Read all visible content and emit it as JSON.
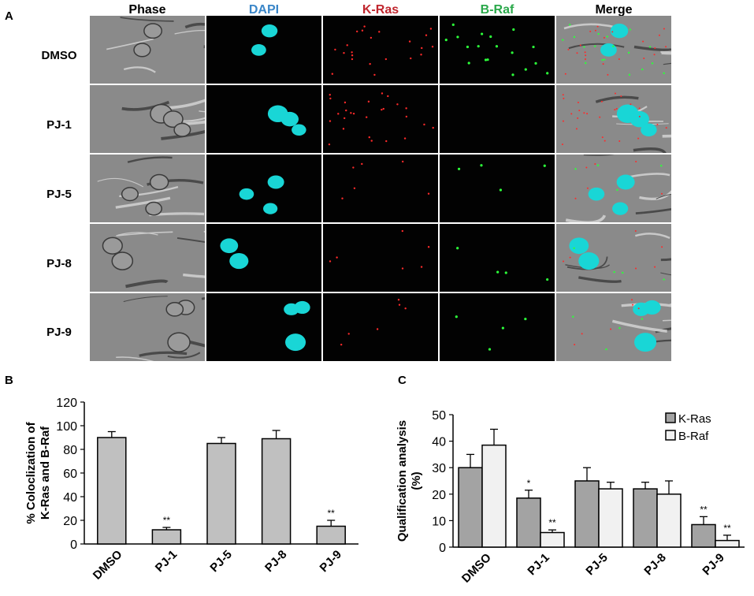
{
  "panels": {
    "A": {
      "letter": "A",
      "columns": [
        {
          "label": "Phase",
          "color": "#000000"
        },
        {
          "label": "DAPI",
          "color": "#3a86c8"
        },
        {
          "label": "K-Ras",
          "color": "#c0262e"
        },
        {
          "label": "B-Raf",
          "color": "#2aa84a"
        },
        {
          "label": "Merge",
          "color": "#000000"
        }
      ],
      "rows": [
        "DMSO",
        "PJ-1",
        "PJ-5",
        "PJ-8",
        "PJ-9"
      ]
    },
    "B": {
      "letter": "B"
    },
    "C": {
      "letter": "C"
    }
  },
  "colors": {
    "nucleus": "#19d6d6",
    "kras_dot": "#ff2a2a",
    "braf_dot": "#2cff3a",
    "bar_gray": "#c0c0c0",
    "bar_dark": "#a3a3a3",
    "bar_light": "#f1f1f1"
  },
  "chart_data": [
    {
      "type": "bar",
      "panel": "B",
      "categories": [
        "DMSO",
        "PJ-1",
        "PJ-5",
        "PJ-8",
        "PJ-9"
      ],
      "values": [
        90,
        12,
        85,
        89,
        15
      ],
      "errors": [
        5,
        2,
        5,
        7,
        5
      ],
      "significance": [
        "",
        "**",
        "",
        "",
        "**"
      ],
      "ylabel_line1": "% Coloclization of",
      "ylabel_line2": "K-Ras and B-Raf",
      "ylim": [
        0,
        120
      ],
      "yticks": [
        0,
        20,
        40,
        60,
        80,
        100,
        120
      ],
      "grid": false
    },
    {
      "type": "bar",
      "panel": "C",
      "categories": [
        "DMSO",
        "PJ-1",
        "PJ-5",
        "PJ-8",
        "PJ-9"
      ],
      "series": [
        {
          "name": "K-Ras",
          "values": [
            30,
            18.5,
            25,
            22,
            8.5
          ],
          "errors": [
            5,
            3,
            5,
            2.5,
            3
          ],
          "significance": [
            "",
            "*",
            "",
            "",
            "**"
          ]
        },
        {
          "name": "B-Raf",
          "values": [
            38.5,
            5.5,
            22,
            20,
            2.5
          ],
          "errors": [
            6,
            1,
            2.5,
            5,
            2
          ],
          "significance": [
            "",
            "**",
            "",
            "",
            "**"
          ]
        }
      ],
      "ylabel_line1": "Qualification analysis",
      "ylabel_line2": "(%)",
      "ylim": [
        0,
        50
      ],
      "yticks": [
        0,
        10,
        20,
        30,
        40,
        50
      ],
      "legend": "top-right",
      "grid": false
    }
  ]
}
